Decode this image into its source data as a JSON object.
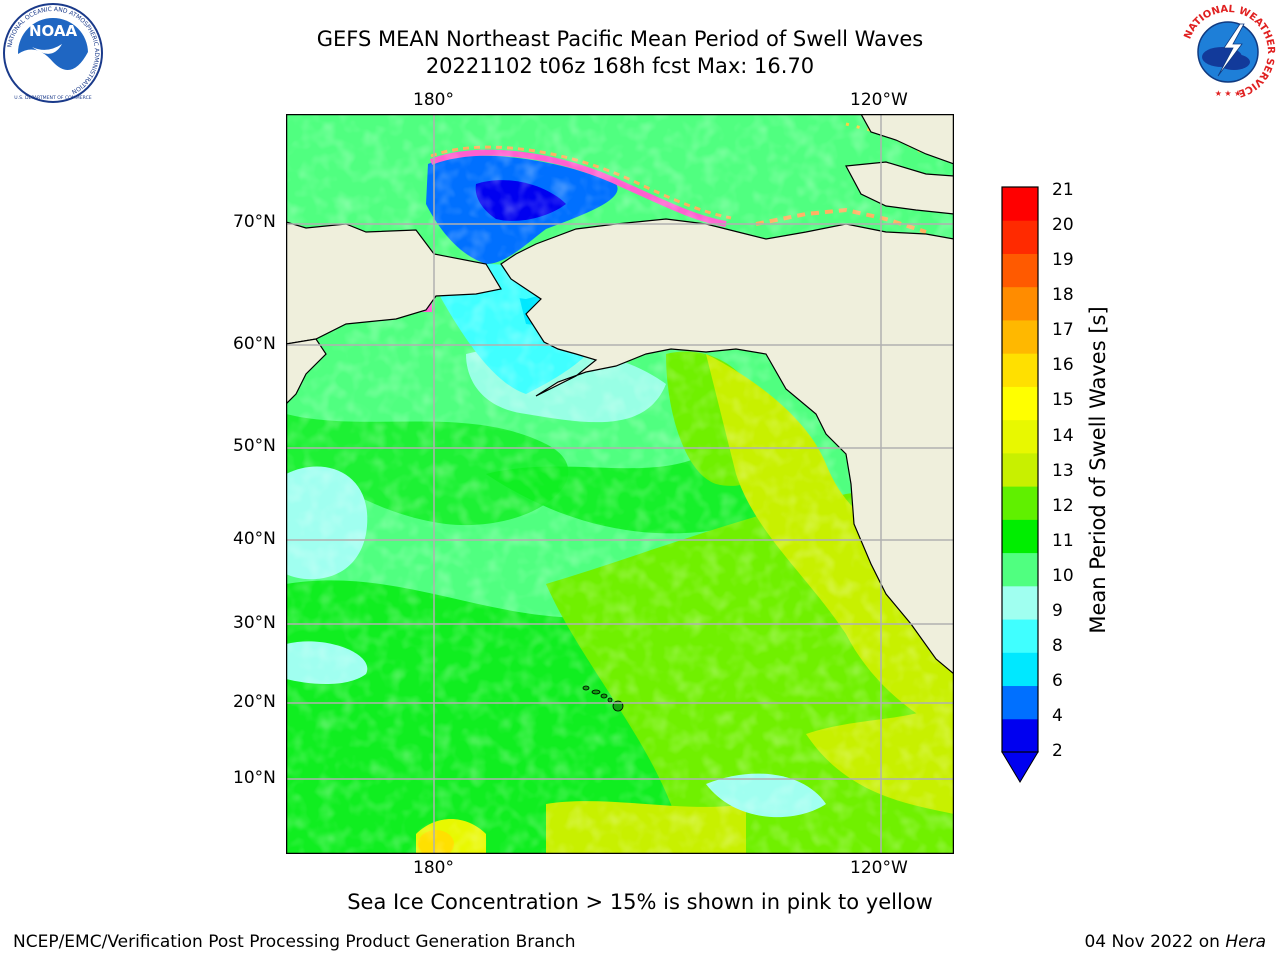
{
  "title": {
    "line1": "GEFS MEAN Northeast Pacific Mean Period of Swell Waves",
    "line2": "20221102 t06z 168h fcst   Max: 16.70"
  },
  "logos": {
    "left": {
      "name": "NOAA",
      "ring_text": "NATIONAL OCEANIC AND ATMOSPHERIC ADMINISTRATION",
      "bottom_text": "U.S. DEPARTMENT OF COMMERCE"
    },
    "right": {
      "ring_text": "NATIONAL WEATHER SERVICE"
    }
  },
  "map": {
    "top_lon_labels": [
      "180°",
      "120°W"
    ],
    "bottom_lon_labels": [
      "180°",
      "120°W"
    ],
    "lat_labels": [
      "70°N",
      "60°N",
      "50°N",
      "40°N",
      "30°N",
      "20°N",
      "10°N"
    ],
    "colors": {
      "land": "#efefdc",
      "grid": "#b0b0b0",
      "coast": "#000000"
    }
  },
  "colorbar": {
    "label": "Mean Period of Swell Waves [s]",
    "ticks": [
      "21",
      "20",
      "19",
      "18",
      "17",
      "16",
      "15",
      "14",
      "13",
      "12",
      "11",
      "10",
      "9",
      "8",
      "6",
      "4",
      "2"
    ],
    "colors": [
      "#0000f0",
      "#0070ff",
      "#00e8ff",
      "#40ffff",
      "#a0fff0",
      "#50ff80",
      "#00ee00",
      "#60f000",
      "#c8f000",
      "#e8f800",
      "#ffff00",
      "#ffe000",
      "#ffb800",
      "#ff8c00",
      "#ff5a00",
      "#ff2a00",
      "#ff0000"
    ]
  },
  "caption": "Sea Ice Concentration > 15% is shown in pink to yellow",
  "footer": {
    "left": "NCEP/EMC/Verification Post Processing Product Generation Branch",
    "right_date": "04 Nov 2022 on ",
    "right_host": "Hera"
  }
}
